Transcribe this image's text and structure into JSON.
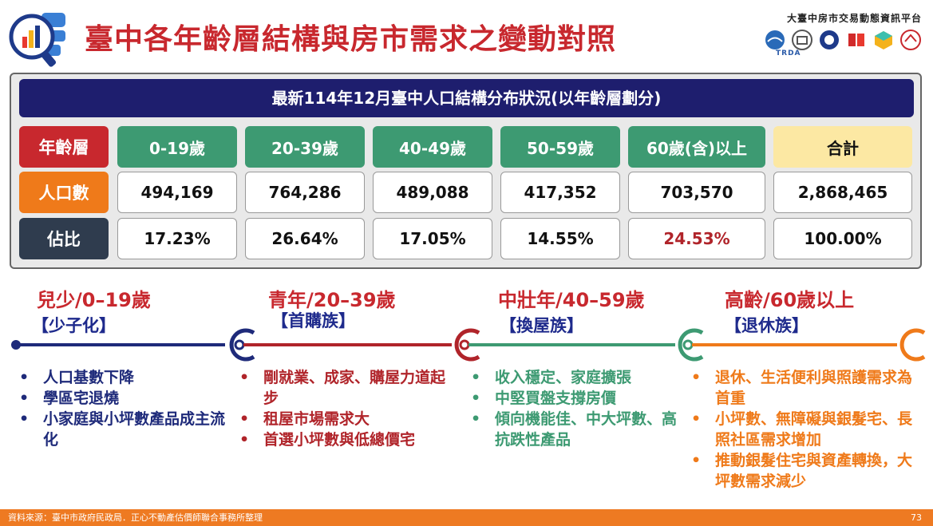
{
  "header": {
    "title": "臺中各年齡層結構與房市需求之變動對照",
    "platform_name": "大臺中房市交易動態資訊平台",
    "partner_label": "TRDA"
  },
  "table": {
    "caption": "最新114年12月臺中人口結構分布狀況(以年齡層劃分)",
    "row_labels": [
      "年齡層",
      "人口數",
      "佔比"
    ],
    "columns": [
      "0-19歲",
      "20-39歲",
      "40-49歲",
      "50-59歲",
      "60歲(含)以上",
      "合計"
    ],
    "population": [
      "494,169",
      "764,286",
      "489,088",
      "417,352",
      "703,570",
      "2,868,465"
    ],
    "share": [
      "17.23%",
      "26.64%",
      "17.05%",
      "14.55%",
      "24.53%",
      "100.00%"
    ]
  },
  "groups": [
    {
      "title": "兒少/0–19歲",
      "tag": "【少子化】",
      "color": "#1e2a7a",
      "bullets": [
        "人口基數下降",
        "學區宅退燒",
        "小家庭與小坪數產品成主流化"
      ]
    },
    {
      "title": "青年/20–39歲",
      "tag": "【首購族】",
      "color": "#b0242a",
      "bullets": [
        "剛就業、成家、購屋力道起步",
        "租屋市場需求大",
        "首選小坪數與低總價宅"
      ]
    },
    {
      "title": "中壯年/40–59歲",
      "tag": "【換屋族】",
      "color": "#3d9a72",
      "bullets": [
        "收入穩定、家庭擴張",
        "中堅買盤支撐房價",
        "傾向機能佳、中大坪數、高抗跌性產品"
      ]
    },
    {
      "title": "高齡/60歲以上",
      "tag": "【退休族】",
      "color": "#ef7a1a",
      "bullets": [
        "退休、生活便利與照護需求為首重",
        "小坪數、無障礙與銀髮宅、長照社區需求增加",
        "推動銀髮住宅與資產轉換，大坪數需求減少"
      ]
    }
  ],
  "footer": {
    "source": "資料來源：臺中市政府民政局．正心不動產估價師聯合事務所整理",
    "page": "73"
  },
  "colors": {
    "title_red": "#c8282e",
    "navy": "#1e1e6e",
    "green": "#3d9a72",
    "orange": "#ef7a1a",
    "total_yellow": "#fce8a3",
    "highlight_red": "#b0242a"
  }
}
